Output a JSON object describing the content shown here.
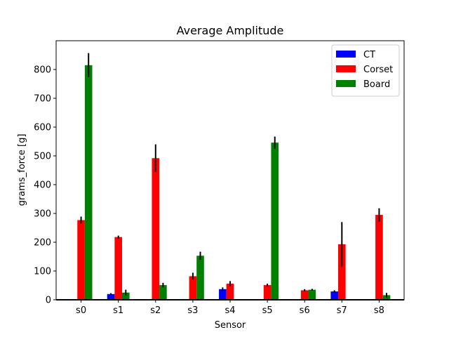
{
  "chart_data": {
    "type": "bar",
    "title": "Average Amplitude",
    "xlabel": "Sensor",
    "ylabel": "grams_force [g]",
    "categories": [
      "s0",
      "s1",
      "s2",
      "s3",
      "s4",
      "s5",
      "s6",
      "s7",
      "s8"
    ],
    "ylim": [
      0,
      900
    ],
    "yticks": [
      0,
      100,
      200,
      300,
      400,
      500,
      600,
      700,
      800
    ],
    "grid": false,
    "legend_position": "top-right",
    "series": [
      {
        "name": "CT",
        "color": "#0000ff",
        "values": [
          0,
          20,
          0,
          0,
          37,
          0,
          0,
          29,
          0
        ],
        "errors": [
          0,
          3,
          0,
          0,
          6,
          0,
          0,
          4,
          0
        ]
      },
      {
        "name": "Corset",
        "color": "#ff0000",
        "values": [
          277,
          218,
          492,
          82,
          56,
          51,
          33,
          193,
          295
        ],
        "errors": [
          12,
          5,
          48,
          12,
          9,
          5,
          4,
          77,
          23
        ]
      },
      {
        "name": "Board",
        "color": "#008000",
        "values": [
          815,
          25,
          51,
          153,
          0,
          546,
          35,
          0,
          16
        ],
        "errors": [
          42,
          10,
          8,
          14,
          0,
          21,
          3,
          0,
          8
        ]
      }
    ]
  }
}
